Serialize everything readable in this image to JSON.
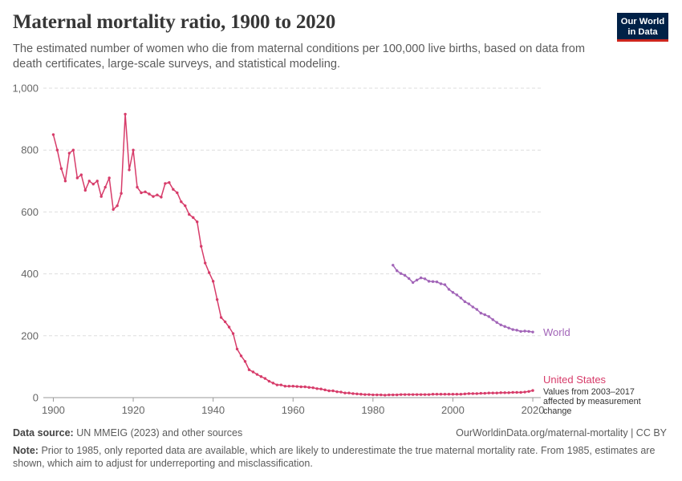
{
  "header": {
    "title": "Maternal mortality ratio, 1900 to 2020",
    "subtitle": "The estimated number of women who die from maternal conditions per 100,000 live births, based on data from death certificates, large-scale surveys, and statistical modeling.",
    "logo_line1": "Our World",
    "logo_line2": "in Data"
  },
  "footer": {
    "source_label": "Data source:",
    "source_text": "UN MMEIG (2023) and other sources",
    "url_text": "OurWorldinData.org/maternal-mortality | CC BY",
    "note_label": "Note:",
    "note_text": "Prior to 1985, only reported data are available, which are likely to underestimate the true maternal mortality rate. From 1985, estimates are shown, which aim to adjust for underreporting and misclassification."
  },
  "chart_data": {
    "type": "line",
    "title": "Maternal mortality ratio, 1900 to 2020",
    "xlim": [
      1897.5,
      2022
    ],
    "ylim": [
      0,
      1000
    ],
    "x_ticks": [
      1900,
      1920,
      1940,
      1960,
      1980,
      2000,
      2020
    ],
    "y_ticks": [
      0,
      200,
      400,
      600,
      800,
      1000
    ],
    "y_tick_labels": [
      "0",
      "200",
      "400",
      "600",
      "800",
      "1,000"
    ],
    "grid": true,
    "legend": "end-of-line labels",
    "series": [
      {
        "name": "United States",
        "color": "#d73c6a",
        "annotation": [
          "Values from 2003–2017",
          "affected by measurement",
          "change"
        ],
        "x": [
          1900,
          1901,
          1902,
          1903,
          1904,
          1905,
          1906,
          1907,
          1908,
          1909,
          1910,
          1911,
          1912,
          1913,
          1914,
          1915,
          1916,
          1917,
          1918,
          1919,
          1920,
          1921,
          1922,
          1923,
          1924,
          1925,
          1926,
          1927,
          1928,
          1929,
          1930,
          1931,
          1932,
          1933,
          1934,
          1935,
          1936,
          1937,
          1938,
          1939,
          1940,
          1941,
          1942,
          1943,
          1944,
          1945,
          1946,
          1947,
          1948,
          1949,
          1950,
          1951,
          1952,
          1953,
          1954,
          1955,
          1956,
          1957,
          1958,
          1959,
          1960,
          1961,
          1962,
          1963,
          1964,
          1965,
          1966,
          1967,
          1968,
          1969,
          1970,
          1971,
          1972,
          1973,
          1974,
          1975,
          1976,
          1977,
          1978,
          1979,
          1980,
          1981,
          1982,
          1983,
          1984,
          1985,
          1986,
          1987,
          1988,
          1989,
          1990,
          1991,
          1992,
          1993,
          1994,
          1995,
          1996,
          1997,
          1998,
          1999,
          2000,
          2001,
          2002,
          2003,
          2004,
          2005,
          2006,
          2007,
          2008,
          2009,
          2010,
          2011,
          2012,
          2013,
          2014,
          2015,
          2016,
          2017,
          2018,
          2019,
          2020
        ],
        "y": [
          850,
          800,
          740,
          700,
          790,
          800,
          710,
          720,
          670,
          700,
          690,
          700,
          650,
          680,
          710,
          608,
          620,
          660,
          916,
          736,
          800,
          680,
          662,
          665,
          658,
          650,
          655,
          648,
          692,
          695,
          673,
          662,
          633,
          620,
          592,
          582,
          568,
          489,
          435,
          404,
          376,
          317,
          259,
          245,
          228,
          207,
          157,
          135,
          117,
          90,
          83,
          75,
          68,
          62,
          53,
          47,
          41,
          41,
          37,
          37,
          37,
          36,
          35,
          35,
          33,
          32,
          29,
          28,
          25,
          22,
          22,
          19,
          18,
          15,
          15,
          13,
          12,
          11,
          10,
          10,
          9,
          9,
          9,
          8,
          9,
          9,
          9,
          10,
          10,
          10,
          10,
          10,
          10,
          10,
          10,
          11,
          11,
          11,
          11,
          11,
          11,
          11,
          11,
          12,
          13,
          13,
          13,
          14,
          14,
          15,
          15,
          15,
          16,
          16,
          16,
          17,
          17,
          17,
          18,
          20,
          23
        ]
      },
      {
        "name": "World",
        "color": "#a265b8",
        "x": [
          1985,
          1986,
          1987,
          1988,
          1989,
          1990,
          1991,
          1992,
          1993,
          1994,
          1995,
          1996,
          1997,
          1998,
          1999,
          2000,
          2001,
          2002,
          2003,
          2004,
          2005,
          2006,
          2007,
          2008,
          2009,
          2010,
          2011,
          2012,
          2013,
          2014,
          2015,
          2016,
          2017,
          2018,
          2019,
          2020
        ],
        "y": [
          428,
          410,
          401,
          395,
          385,
          372,
          380,
          387,
          384,
          376,
          375,
          374,
          368,
          365,
          350,
          340,
          332,
          322,
          310,
          303,
          293,
          285,
          273,
          268,
          262,
          252,
          243,
          235,
          230,
          225,
          220,
          218,
          214,
          215,
          214,
          212
        ]
      }
    ]
  }
}
